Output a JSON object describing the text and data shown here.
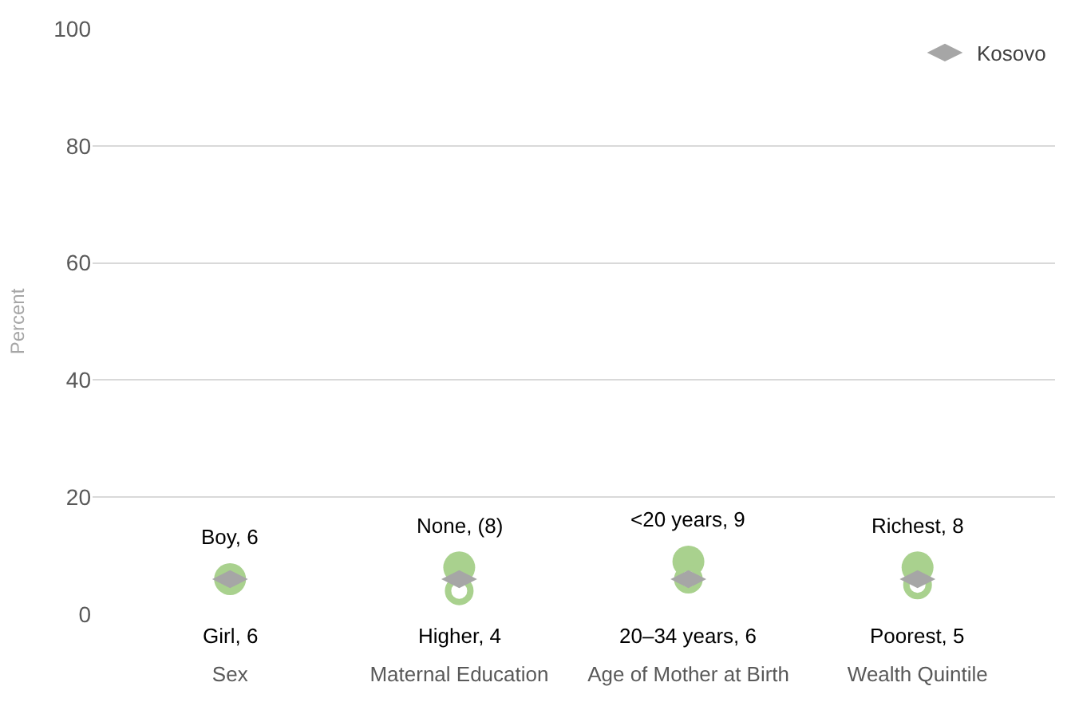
{
  "chart_data": {
    "type": "scatter",
    "ylabel": "Percent",
    "categories": [
      "Sex",
      "Maternal Education",
      "Age of Mother at Birth",
      "Wealth Quintile"
    ],
    "ylim": [
      0,
      100
    ],
    "yticks": [
      0,
      20,
      40,
      60,
      80,
      100
    ],
    "grid": "y",
    "legend": "top right",
    "series": [
      {
        "color": "#a9d18e",
        "values": [
          6,
          8,
          9,
          8
        ],
        "value_labels": [
          "Boy, 6",
          "None, (8)",
          "<20 years, 9",
          "Richest, 8"
        ]
      },
      {
        "color": "#a9d18e",
        "values": [
          null,
          4,
          6,
          5
        ],
        "value_labels": [
          "Girl, 6",
          "Higher, 4",
          "20–34 years, 6",
          "Poorest, 5"
        ]
      },
      {
        "name": "Kosovo",
        "color": "#a6a6a6",
        "values": [
          6,
          6,
          6,
          6
        ]
      }
    ]
  }
}
